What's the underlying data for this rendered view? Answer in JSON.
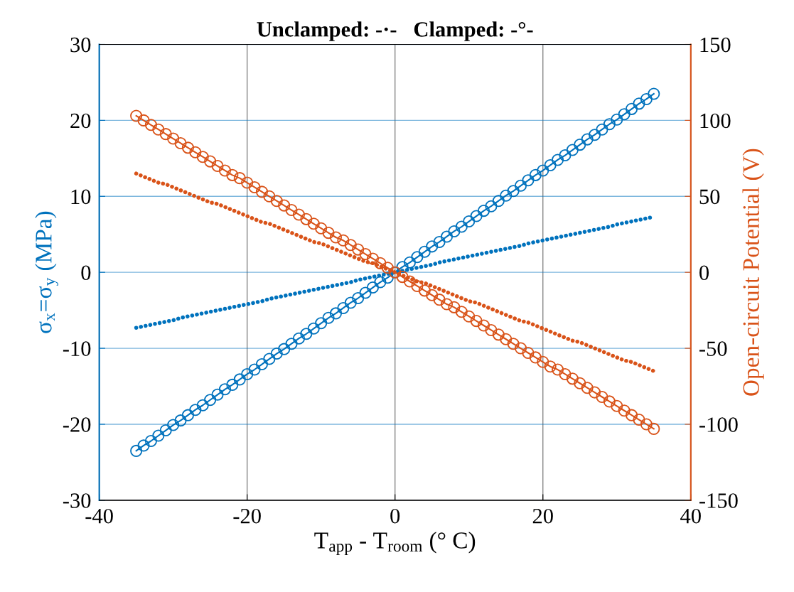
{
  "chart_data": {
    "type": "line",
    "title": "Unclamped: -·-   Clamped: -°-",
    "xlabel": "T$_{app}$ - T$_{room}$ (° C)",
    "ylabel": "σ$_{x}$=σ$_{y}$ (MPa)",
    "y2label": "Open-circuit Potential (V)",
    "x": [
      -35,
      -34,
      -33,
      -32,
      -31,
      -30,
      -29,
      -28,
      -27,
      -26,
      -25,
      -24,
      -23,
      -22,
      -21,
      -20,
      -19,
      -18,
      -17,
      -16,
      -15,
      -14,
      -13,
      -12,
      -11,
      -10,
      -9,
      -8,
      -7,
      -6,
      -5,
      -4,
      -3,
      -2,
      -1,
      0,
      1,
      2,
      3,
      4,
      5,
      6,
      7,
      8,
      9,
      10,
      11,
      12,
      13,
      14,
      15,
      16,
      17,
      18,
      19,
      20,
      21,
      22,
      23,
      24,
      25,
      26,
      27,
      28,
      29,
      30,
      31,
      32,
      33,
      34,
      35
    ],
    "series": [
      {
        "color": "#0072bd",
        "marker": "circle",
        "values": [
          -23.5,
          -22.8,
          -22.2,
          -21.5,
          -20.8,
          -20.1,
          -19.5,
          -18.8,
          -18.1,
          -17.5,
          -16.8,
          -16.1,
          -15.4,
          -14.8,
          -14.1,
          -13.4,
          -12.8,
          -12.1,
          -11.4,
          -10.7,
          -10.1,
          -9.4,
          -8.7,
          -8.1,
          -7.4,
          -6.7,
          -6.0,
          -5.4,
          -4.7,
          -4.0,
          -3.4,
          -2.7,
          -2.0,
          -1.3,
          -0.7,
          0,
          0.7,
          1.3,
          2.0,
          2.7,
          3.4,
          4.0,
          4.7,
          5.4,
          6.0,
          6.7,
          7.4,
          8.1,
          8.7,
          9.4,
          10.1,
          10.7,
          11.4,
          12.1,
          12.8,
          13.4,
          14.1,
          14.8,
          15.4,
          16.1,
          16.8,
          17.5,
          18.1,
          18.8,
          19.5,
          20.1,
          20.8,
          21.5,
          22.2,
          22.8,
          23.5
        ]
      },
      {
        "color": "#0072bd",
        "marker": "none",
        "line_style": "dotted",
        "values": [
          -7.3,
          -7.1,
          -6.9,
          -6.7,
          -6.5,
          -6.3,
          -6.0,
          -5.8,
          -5.6,
          -5.4,
          -5.2,
          -5.0,
          -4.8,
          -4.6,
          -4.4,
          -4.2,
          -4.0,
          -3.8,
          -3.5,
          -3.3,
          -3.1,
          -2.9,
          -2.7,
          -2.5,
          -2.3,
          -2.1,
          -1.9,
          -1.7,
          -1.5,
          -1.3,
          -1.0,
          -0.8,
          -0.6,
          -0.4,
          -0.2,
          0,
          0.2,
          0.4,
          0.6,
          0.8,
          1.0,
          1.3,
          1.5,
          1.7,
          1.9,
          2.1,
          2.3,
          2.5,
          2.7,
          2.9,
          3.1,
          3.3,
          3.5,
          3.8,
          4.0,
          4.2,
          4.4,
          4.6,
          4.8,
          5.0,
          5.2,
          5.4,
          5.6,
          5.8,
          6.0,
          6.3,
          6.5,
          6.7,
          6.9,
          7.1,
          7.3
        ]
      },
      {
        "color": "#d95319",
        "axis": "y2",
        "marker": "circle",
        "values": [
          103,
          100,
          97,
          94,
          91,
          88,
          85,
          82,
          79,
          76,
          73,
          70,
          67,
          64,
          62,
          59,
          56,
          53,
          50,
          47,
          44,
          41,
          38,
          35,
          32,
          29,
          26,
          23,
          21,
          18,
          15,
          12,
          9,
          6,
          3,
          0,
          -3,
          -6,
          -9,
          -12,
          -15,
          -18,
          -21,
          -23,
          -26,
          -29,
          -32,
          -35,
          -38,
          -41,
          -44,
          -47,
          -50,
          -53,
          -56,
          -59,
          -62,
          -64,
          -67,
          -70,
          -73,
          -76,
          -79,
          -82,
          -85,
          -88,
          -91,
          -94,
          -97,
          -100,
          -103
        ]
      },
      {
        "color": "#d95319",
        "axis": "y2",
        "marker": "none",
        "line_style": "dotted",
        "values": [
          65,
          63,
          61,
          59,
          58,
          56,
          54,
          52,
          50,
          48,
          46,
          45,
          43,
          41,
          39,
          37,
          35,
          33,
          32,
          30,
          28,
          26,
          24,
          22,
          20,
          19,
          17,
          15,
          13,
          11,
          9,
          7,
          6,
          4,
          2,
          0,
          -2,
          -4,
          -6,
          -7,
          -9,
          -11,
          -13,
          -15,
          -17,
          -19,
          -20,
          -22,
          -24,
          -26,
          -28,
          -30,
          -32,
          -33,
          -35,
          -37,
          -39,
          -41,
          -43,
          -45,
          -46,
          -48,
          -50,
          -52,
          -54,
          -56,
          -58,
          -59,
          -61,
          -63,
          -65
        ]
      }
    ],
    "xlim": [
      -40,
      40
    ],
    "xticks": [
      -40,
      -20,
      0,
      20,
      40
    ],
    "ylim": [
      -30,
      30
    ],
    "yticks": [
      -30,
      -20,
      -10,
      0,
      10,
      20,
      30
    ],
    "y2lim": [
      -150,
      150
    ],
    "y2ticks": [
      -150,
      -100,
      -50,
      0,
      50,
      100,
      150
    ],
    "grid": true,
    "line_style": "solid"
  }
}
